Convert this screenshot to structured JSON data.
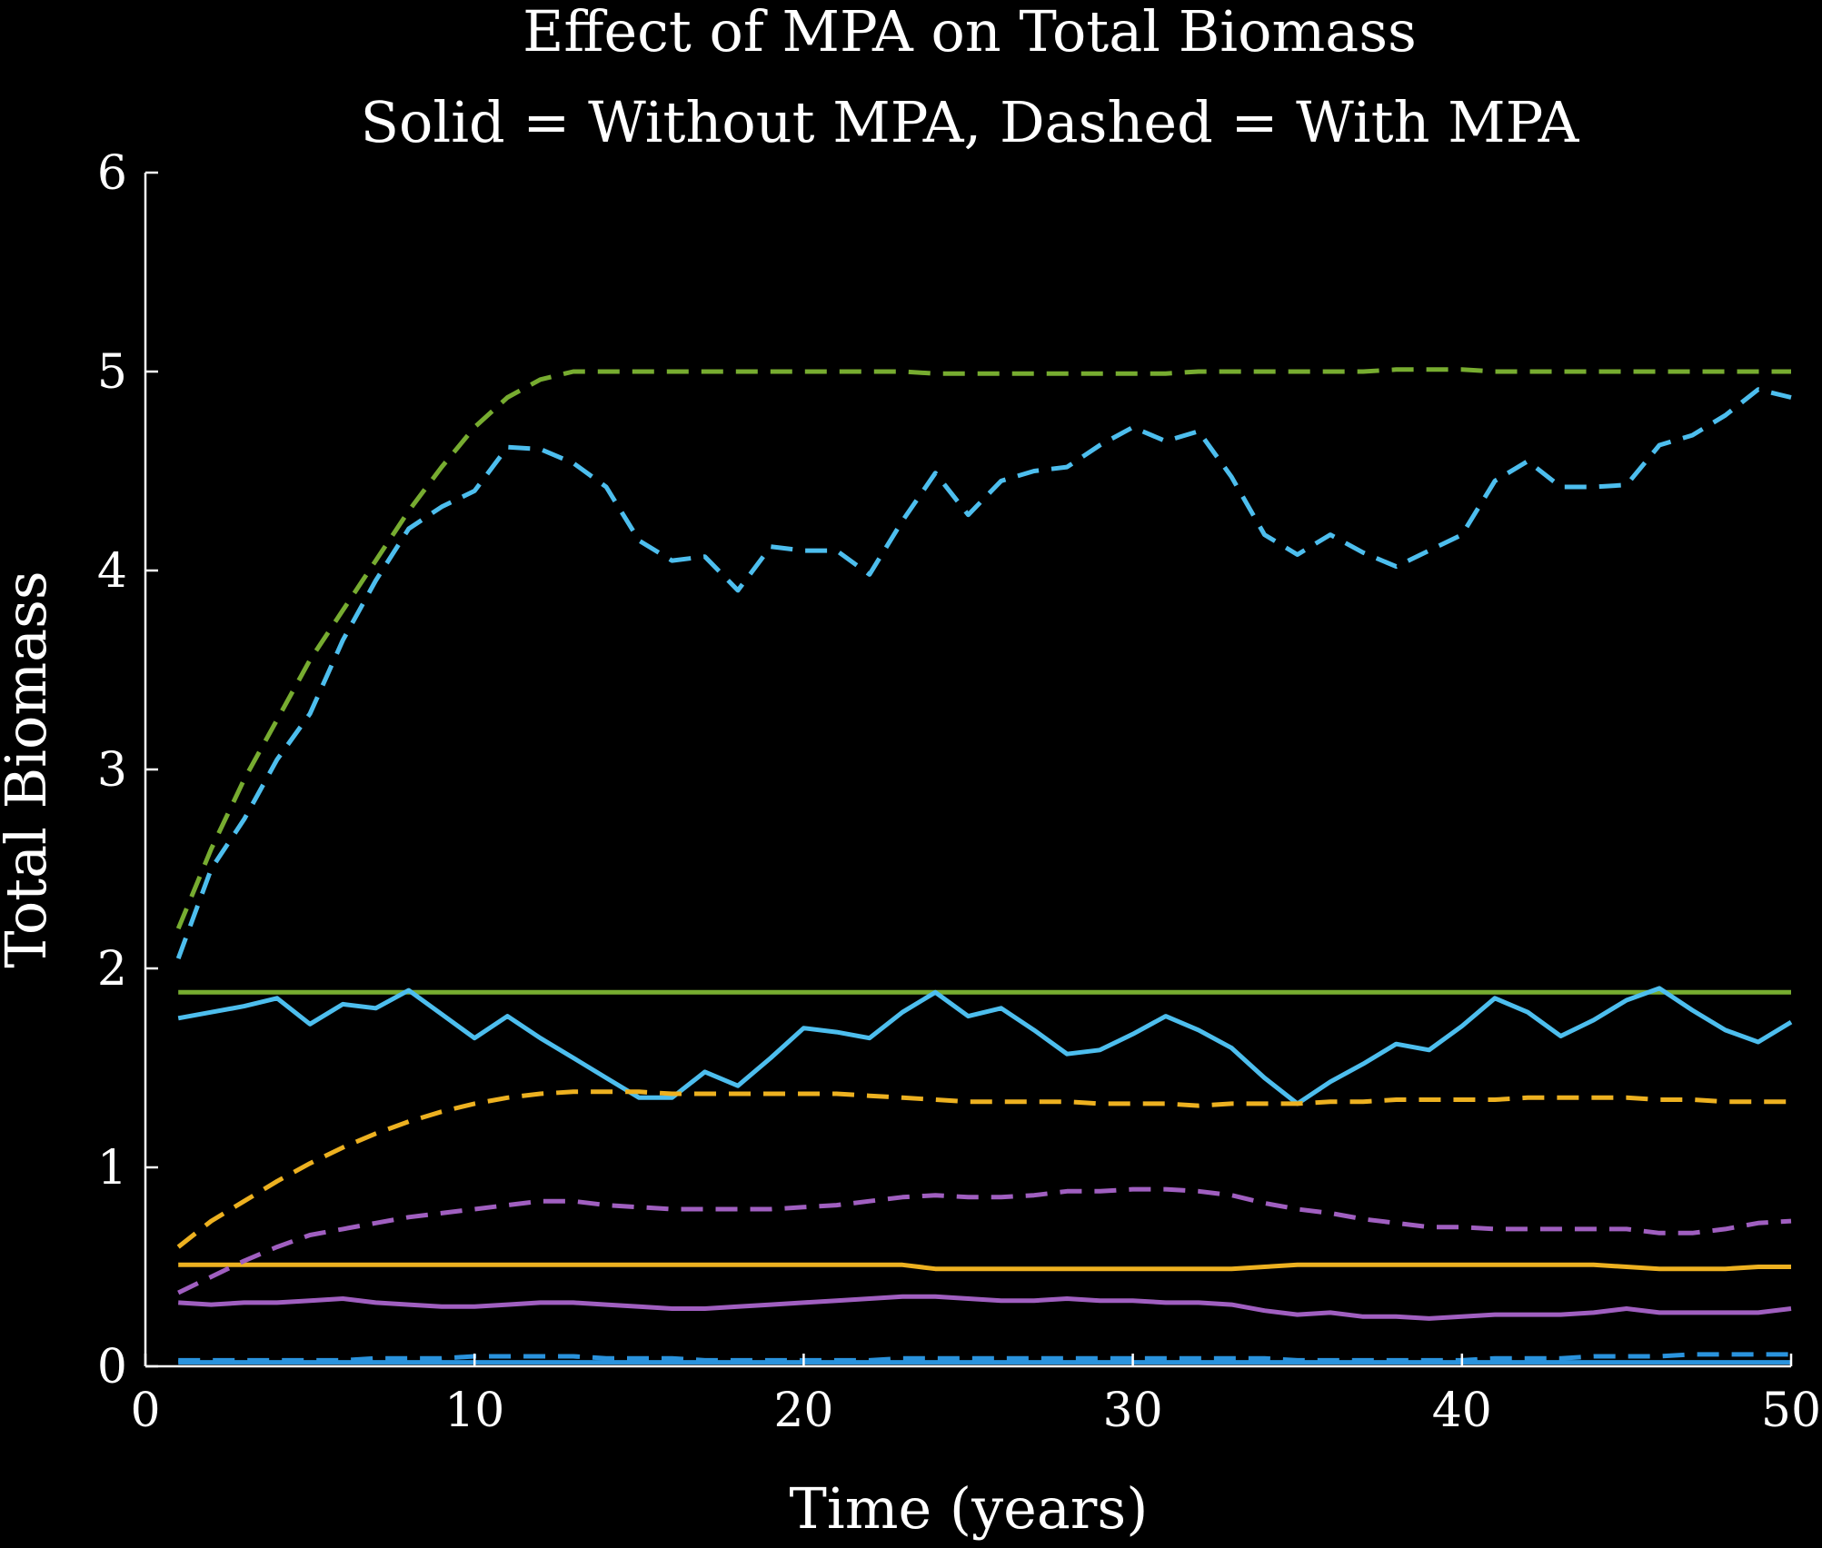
{
  "chart_data": {
    "type": "line",
    "title": "Effect of MPA on Total Biomass",
    "subtitle": "Solid = Without MPA, Dashed = With MPA",
    "xlabel": "Time (years)",
    "ylabel": "Total Biomass",
    "xlim": [
      0,
      50
    ],
    "ylim": [
      0,
      6
    ],
    "xticks": [
      0,
      10,
      20,
      30,
      40,
      50
    ],
    "yticks": [
      0,
      1,
      2,
      3,
      4,
      5,
      6
    ],
    "grid": false,
    "legend": "none",
    "x": [
      1,
      2,
      3,
      4,
      5,
      6,
      7,
      8,
      9,
      10,
      11,
      12,
      13,
      14,
      15,
      16,
      17,
      18,
      19,
      20,
      21,
      22,
      23,
      24,
      25,
      26,
      27,
      28,
      29,
      30,
      31,
      32,
      33,
      34,
      35,
      36,
      37,
      38,
      39,
      40,
      41,
      42,
      43,
      44,
      45,
      46,
      47,
      48,
      49,
      50
    ],
    "series": [
      {
        "color": "#77ac30",
        "style": "solid",
        "values": [
          1.88,
          1.88,
          1.88,
          1.88,
          1.88,
          1.88,
          1.88,
          1.88,
          1.88,
          1.88,
          1.88,
          1.88,
          1.88,
          1.88,
          1.88,
          1.88,
          1.88,
          1.88,
          1.88,
          1.88,
          1.88,
          1.88,
          1.88,
          1.88,
          1.88,
          1.88,
          1.88,
          1.88,
          1.88,
          1.88,
          1.88,
          1.88,
          1.88,
          1.88,
          1.88,
          1.88,
          1.88,
          1.88,
          1.88,
          1.88,
          1.88,
          1.88,
          1.88,
          1.88,
          1.88,
          1.88,
          1.88,
          1.88,
          1.88,
          1.88
        ]
      },
      {
        "color": "#77ac30",
        "style": "dashed",
        "values": [
          2.2,
          2.6,
          2.95,
          3.25,
          3.55,
          3.8,
          4.05,
          4.3,
          4.52,
          4.72,
          4.87,
          4.96,
          5.0,
          5.0,
          5.0,
          5.0,
          5.0,
          5.0,
          5.0,
          5.0,
          5.0,
          5.0,
          5.0,
          4.99,
          4.99,
          4.99,
          4.99,
          4.99,
          4.99,
          4.99,
          4.99,
          5.0,
          5.0,
          5.0,
          5.0,
          5.0,
          5.0,
          5.01,
          5.01,
          5.01,
          5.0,
          5.0,
          5.0,
          5.0,
          5.0,
          5.0,
          5.0,
          5.0,
          5.0,
          5.0
        ]
      },
      {
        "color": "#4dbeee",
        "style": "solid",
        "values": [
          1.75,
          1.78,
          1.81,
          1.85,
          1.72,
          1.82,
          1.8,
          1.89,
          1.77,
          1.65,
          1.76,
          1.65,
          1.55,
          1.45,
          1.35,
          1.35,
          1.48,
          1.41,
          1.55,
          1.7,
          1.68,
          1.65,
          1.78,
          1.88,
          1.76,
          1.8,
          1.69,
          1.57,
          1.59,
          1.67,
          1.76,
          1.69,
          1.6,
          1.45,
          1.32,
          1.43,
          1.52,
          1.62,
          1.59,
          1.71,
          1.85,
          1.78,
          1.66,
          1.74,
          1.84,
          1.9,
          1.79,
          1.69,
          1.63,
          1.73
        ]
      },
      {
        "color": "#4dbeee",
        "style": "dashed",
        "values": [
          2.05,
          2.5,
          2.75,
          3.05,
          3.28,
          3.65,
          3.95,
          4.21,
          4.32,
          4.4,
          4.62,
          4.61,
          4.54,
          4.42,
          4.15,
          4.05,
          4.07,
          3.9,
          4.12,
          4.1,
          4.1,
          3.98,
          4.25,
          4.49,
          4.28,
          4.45,
          4.5,
          4.52,
          4.63,
          4.72,
          4.65,
          4.7,
          4.47,
          4.18,
          4.08,
          4.18,
          4.09,
          4.02,
          4.1,
          4.18,
          4.45,
          4.55,
          4.42,
          4.42,
          4.43,
          4.63,
          4.68,
          4.78,
          4.91,
          4.87
        ]
      },
      {
        "color": "#edb120",
        "style": "solid",
        "values": [
          0.51,
          0.51,
          0.51,
          0.51,
          0.51,
          0.51,
          0.51,
          0.51,
          0.51,
          0.51,
          0.51,
          0.51,
          0.51,
          0.51,
          0.51,
          0.51,
          0.51,
          0.51,
          0.51,
          0.51,
          0.51,
          0.51,
          0.51,
          0.49,
          0.49,
          0.49,
          0.49,
          0.49,
          0.49,
          0.49,
          0.49,
          0.49,
          0.49,
          0.5,
          0.51,
          0.51,
          0.51,
          0.51,
          0.51,
          0.51,
          0.51,
          0.51,
          0.51,
          0.51,
          0.5,
          0.49,
          0.49,
          0.49,
          0.5,
          0.5
        ]
      },
      {
        "color": "#edb120",
        "style": "dashed",
        "values": [
          0.6,
          0.73,
          0.83,
          0.93,
          1.02,
          1.1,
          1.17,
          1.23,
          1.28,
          1.32,
          1.35,
          1.37,
          1.38,
          1.38,
          1.38,
          1.37,
          1.37,
          1.37,
          1.37,
          1.37,
          1.37,
          1.36,
          1.35,
          1.34,
          1.33,
          1.33,
          1.33,
          1.33,
          1.32,
          1.32,
          1.32,
          1.31,
          1.32,
          1.32,
          1.32,
          1.33,
          1.33,
          1.34,
          1.34,
          1.34,
          1.34,
          1.35,
          1.35,
          1.35,
          1.35,
          1.34,
          1.34,
          1.33,
          1.33,
          1.33
        ]
      },
      {
        "color": "#a05fc0",
        "style": "solid",
        "values": [
          0.32,
          0.31,
          0.32,
          0.32,
          0.33,
          0.34,
          0.32,
          0.31,
          0.3,
          0.3,
          0.31,
          0.32,
          0.32,
          0.31,
          0.3,
          0.29,
          0.29,
          0.3,
          0.31,
          0.32,
          0.33,
          0.34,
          0.35,
          0.35,
          0.34,
          0.33,
          0.33,
          0.34,
          0.33,
          0.33,
          0.32,
          0.32,
          0.31,
          0.28,
          0.26,
          0.27,
          0.25,
          0.25,
          0.24,
          0.25,
          0.26,
          0.26,
          0.26,
          0.27,
          0.29,
          0.27,
          0.27,
          0.27,
          0.27,
          0.29
        ]
      },
      {
        "color": "#a05fc0",
        "style": "dashed",
        "values": [
          0.37,
          0.45,
          0.53,
          0.6,
          0.66,
          0.69,
          0.72,
          0.75,
          0.77,
          0.79,
          0.81,
          0.83,
          0.83,
          0.81,
          0.8,
          0.79,
          0.79,
          0.79,
          0.79,
          0.8,
          0.81,
          0.83,
          0.85,
          0.86,
          0.85,
          0.85,
          0.86,
          0.88,
          0.88,
          0.89,
          0.89,
          0.88,
          0.86,
          0.82,
          0.79,
          0.77,
          0.74,
          0.72,
          0.7,
          0.7,
          0.69,
          0.69,
          0.69,
          0.69,
          0.69,
          0.67,
          0.67,
          0.69,
          0.72,
          0.73
        ]
      },
      {
        "color": "#2a93dd",
        "style": "solid",
        "values": [
          0.02,
          0.02,
          0.02,
          0.02,
          0.02,
          0.02,
          0.02,
          0.02,
          0.02,
          0.02,
          0.02,
          0.02,
          0.02,
          0.02,
          0.02,
          0.02,
          0.02,
          0.02,
          0.02,
          0.02,
          0.02,
          0.02,
          0.02,
          0.02,
          0.02,
          0.02,
          0.02,
          0.02,
          0.02,
          0.02,
          0.02,
          0.02,
          0.02,
          0.02,
          0.02,
          0.02,
          0.02,
          0.02,
          0.02,
          0.02,
          0.02,
          0.02,
          0.02,
          0.02,
          0.02,
          0.02,
          0.02,
          0.02,
          0.02,
          0.02
        ]
      },
      {
        "color": "#2a93dd",
        "style": "dashed",
        "values": [
          0.03,
          0.03,
          0.03,
          0.03,
          0.03,
          0.03,
          0.04,
          0.04,
          0.04,
          0.05,
          0.05,
          0.05,
          0.05,
          0.04,
          0.04,
          0.04,
          0.03,
          0.03,
          0.03,
          0.03,
          0.03,
          0.03,
          0.04,
          0.04,
          0.04,
          0.04,
          0.04,
          0.04,
          0.04,
          0.04,
          0.04,
          0.04,
          0.04,
          0.04,
          0.03,
          0.03,
          0.03,
          0.03,
          0.03,
          0.03,
          0.04,
          0.04,
          0.04,
          0.05,
          0.05,
          0.05,
          0.06,
          0.06,
          0.06,
          0.06
        ]
      }
    ]
  }
}
